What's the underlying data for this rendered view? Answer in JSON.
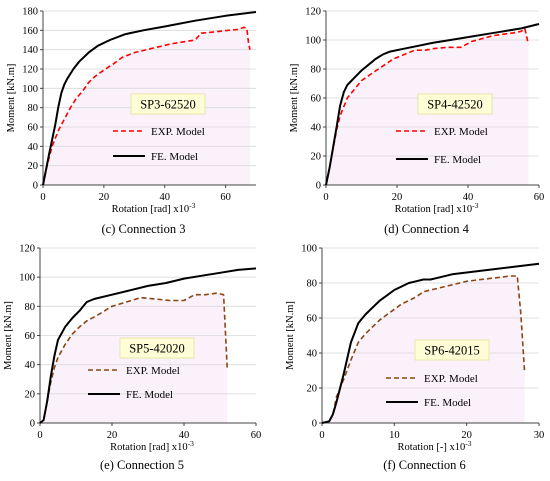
{
  "figure": {
    "panels_order": [
      "c",
      "d",
      "e",
      "f"
    ]
  },
  "chart_data": [
    {
      "id": "c",
      "type": "line",
      "caption": "(c) Connection 3",
      "specimen_label": "SP3-62520",
      "xlabel": "Rotation [rad] x10",
      "xlabel_sup": "-3",
      "ylabel": "Moment [kN.m]",
      "xlim": [
        0,
        70
      ],
      "ylim": [
        0,
        180
      ],
      "xticks": [
        0,
        20,
        40,
        60
      ],
      "yticks": [
        0,
        20,
        40,
        60,
        80,
        100,
        120,
        140,
        160,
        180
      ],
      "label_box": {
        "fill": "#fffcd6",
        "border": "#e8e8a8"
      },
      "series": [
        {
          "name": "EXP. Model",
          "style": "dashed",
          "color": "#ff0000",
          "x": [
            0,
            1,
            2,
            3,
            4,
            5,
            7,
            9,
            11,
            13,
            15,
            17,
            20,
            23,
            26,
            30,
            34,
            38,
            42,
            46,
            50,
            52,
            55,
            58,
            61,
            64,
            66,
            67,
            67.5,
            68
          ],
          "y": [
            0,
            15,
            28,
            40,
            48,
            56,
            68,
            80,
            90,
            97,
            106,
            112,
            119,
            125,
            132,
            137,
            140,
            143,
            146,
            148,
            150,
            157,
            158,
            159,
            160,
            161,
            163,
            162,
            148,
            140
          ]
        },
        {
          "name": "FE. Model",
          "style": "solid",
          "color": "#000000",
          "x": [
            0,
            2,
            4,
            5,
            6,
            7,
            8,
            10,
            12,
            15,
            18,
            22,
            27,
            33,
            40,
            50,
            60,
            70
          ],
          "y": [
            0,
            32,
            62,
            80,
            95,
            104,
            110,
            120,
            128,
            137,
            144,
            150,
            156,
            160,
            164,
            170,
            175,
            179
          ]
        }
      ]
    },
    {
      "id": "d",
      "type": "line",
      "caption": "(d) Connection 4",
      "specimen_label": "SP4-42520",
      "xlabel": "Rotation [rad] x10",
      "xlabel_sup": "-3",
      "ylabel": "Moment [kN.m]",
      "xlim": [
        0,
        60
      ],
      "ylim": [
        0,
        120
      ],
      "xticks": [
        0,
        20,
        40,
        60
      ],
      "yticks": [
        0,
        20,
        40,
        60,
        80,
        100,
        120
      ],
      "label_box": {
        "fill": "#fffcd6",
        "border": "#e8e8a8"
      },
      "series": [
        {
          "name": "EXP. Model",
          "style": "dashed",
          "color": "#ff0000",
          "x": [
            0,
            1,
            2,
            3,
            4,
            5,
            6,
            8,
            10,
            13,
            16,
            19,
            22,
            25,
            28,
            30,
            34,
            38,
            41,
            44,
            47,
            50,
            53,
            55,
            56,
            57
          ],
          "y": [
            0,
            12,
            25,
            38,
            48,
            54,
            60,
            66,
            72,
            77,
            82,
            87,
            90,
            93,
            93,
            94,
            95,
            95,
            99,
            101,
            103,
            104,
            105,
            106,
            108,
            97
          ]
        },
        {
          "name": "FE. Model",
          "style": "solid",
          "color": "#000000",
          "x": [
            0,
            1,
            2,
            3,
            4,
            5,
            6,
            8,
            10,
            12,
            14,
            16,
            18,
            22,
            26,
            30,
            35,
            40,
            45,
            50,
            55,
            60
          ],
          "y": [
            0,
            12,
            26,
            40,
            55,
            64,
            69,
            74,
            79,
            83,
            87,
            90,
            92,
            94,
            96,
            98,
            100,
            102,
            104,
            106,
            108,
            111
          ]
        }
      ]
    },
    {
      "id": "e",
      "type": "line",
      "caption": "(e) Connection 5",
      "specimen_label": "SP5-42020",
      "xlabel": "Rotation [rad] x10",
      "xlabel_sup": "-3",
      "ylabel": "Moment [kN.m]",
      "xlim": [
        0,
        60
      ],
      "ylim": [
        0,
        120
      ],
      "xticks": [
        0,
        20,
        40,
        60
      ],
      "yticks": [
        0,
        20,
        40,
        60,
        80,
        100,
        120
      ],
      "label_box": {
        "fill": "#fffcd6",
        "border": "#e8e8a8"
      },
      "series": [
        {
          "name": "EXP. Model",
          "style": "dashed",
          "color": "#8b4513",
          "x": [
            0,
            1,
            2,
            3,
            4,
            5,
            7,
            9,
            11,
            13,
            16,
            20,
            24,
            28,
            32,
            36,
            40,
            43,
            46,
            49,
            51,
            52
          ],
          "y": [
            0,
            2,
            15,
            28,
            38,
            45,
            54,
            61,
            66,
            70,
            74,
            80,
            83,
            86,
            85,
            84,
            84,
            88,
            88,
            89,
            88,
            38
          ]
        },
        {
          "name": "FE. Model",
          "style": "solid",
          "color": "#000000",
          "x": [
            0,
            1,
            2,
            3,
            4,
            5,
            7,
            9,
            11,
            12,
            13,
            15,
            20,
            25,
            30,
            35,
            40,
            45,
            50,
            55,
            60
          ],
          "y": [
            0,
            2,
            15,
            32,
            46,
            57,
            66,
            72,
            77,
            80,
            83,
            85,
            88,
            91,
            94,
            96,
            99,
            101,
            103,
            105,
            106
          ]
        }
      ]
    },
    {
      "id": "f",
      "type": "line",
      "caption": "(f) Connection 6",
      "specimen_label": "SP6-42015",
      "xlabel": "Rotation [-] x10",
      "xlabel_sup": "-3",
      "ylabel": "Moment [kN.m]",
      "xlim": [
        0,
        30
      ],
      "ylim": [
        0,
        100
      ],
      "xticks": [
        0,
        10,
        20,
        30
      ],
      "yticks": [
        0,
        20,
        40,
        60,
        80,
        100
      ],
      "label_box": {
        "fill": "#fffcd6",
        "border": "#e8e8a8"
      },
      "series": [
        {
          "name": "EXP. Model",
          "style": "dashed",
          "color": "#8b4513",
          "x": [
            0,
            1,
            1.5,
            2,
            3,
            4,
            5,
            6,
            7,
            8,
            9,
            10,
            11,
            12,
            13,
            14,
            15,
            16,
            18,
            20,
            22,
            24,
            26,
            27,
            27.5,
            28
          ],
          "y": [
            0,
            1,
            5,
            15,
            25,
            36,
            46,
            51,
            55,
            59,
            62,
            65,
            68,
            70,
            72,
            75,
            76,
            77,
            79,
            81,
            82,
            83,
            84,
            84,
            62,
            30
          ]
        },
        {
          "name": "FE. Model",
          "style": "solid",
          "color": "#000000",
          "x": [
            0,
            1,
            1.5,
            2,
            3,
            4,
            5,
            6,
            7,
            8,
            9,
            10,
            11,
            12,
            13,
            14,
            15,
            16,
            18,
            20,
            22,
            24,
            26,
            28,
            30
          ],
          "y": [
            0,
            1,
            5,
            12,
            28,
            46,
            57,
            62,
            66,
            70,
            73,
            76,
            78,
            80,
            81,
            82,
            82,
            83,
            85,
            86,
            87,
            88,
            89,
            90,
            91
          ]
        }
      ]
    }
  ]
}
